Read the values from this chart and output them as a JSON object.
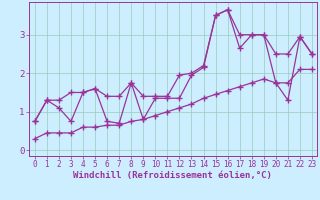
{
  "xlabel": "Windchill (Refroidissement éolien,°C)",
  "background_color": "#cceeff",
  "grid_color": "#99ccbb",
  "line_color": "#993399",
  "xlim": [
    -0.5,
    23.4
  ],
  "ylim": [
    -0.15,
    3.85
  ],
  "xticks": [
    0,
    1,
    2,
    3,
    4,
    5,
    6,
    7,
    8,
    9,
    10,
    11,
    12,
    13,
    14,
    15,
    16,
    17,
    18,
    19,
    20,
    21,
    22,
    23
  ],
  "yticks": [
    0,
    1,
    2,
    3
  ],
  "x_data": [
    0,
    1,
    2,
    3,
    4,
    5,
    6,
    7,
    8,
    9,
    10,
    11,
    12,
    13,
    14,
    15,
    16,
    17,
    18,
    19,
    20,
    21,
    22,
    23
  ],
  "y_main": [
    0.75,
    1.3,
    1.1,
    0.75,
    1.5,
    1.6,
    0.75,
    0.7,
    1.75,
    0.8,
    1.35,
    1.35,
    1.35,
    1.95,
    2.15,
    3.5,
    3.65,
    2.65,
    3.0,
    3.0,
    1.75,
    1.3,
    2.95,
    2.5
  ],
  "y_upper": [
    0.75,
    1.3,
    1.3,
    1.5,
    1.5,
    1.6,
    1.4,
    1.4,
    1.75,
    1.4,
    1.4,
    1.4,
    1.95,
    2.0,
    2.2,
    3.5,
    3.65,
    3.0,
    3.0,
    3.0,
    2.5,
    2.5,
    2.95,
    2.5
  ],
  "y_lower": [
    0.3,
    0.45,
    0.45,
    0.45,
    0.6,
    0.6,
    0.65,
    0.65,
    0.75,
    0.8,
    0.9,
    1.0,
    1.1,
    1.2,
    1.35,
    1.45,
    1.55,
    1.65,
    1.75,
    1.85,
    1.75,
    1.75,
    2.1,
    2.1
  ],
  "marker": "+",
  "markersize": 4,
  "markeredgewidth": 1.0,
  "linewidth": 0.9,
  "tick_fontsize": 5.5,
  "label_fontsize": 6.5
}
